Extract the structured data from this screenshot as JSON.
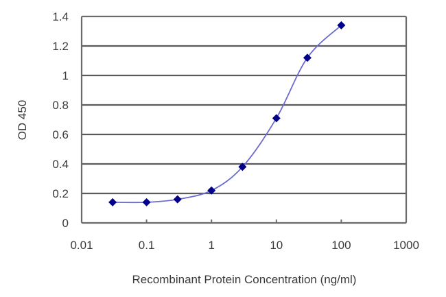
{
  "chart_data": {
    "type": "line",
    "title": "",
    "xlabel": "Recombinant Protein Concentration (ng/ml)",
    "ylabel": "OD 450",
    "xscale": "log",
    "xlim": [
      0.01,
      1000
    ],
    "ylim": [
      0,
      1.4
    ],
    "xticks": [
      "0.01",
      "0.1",
      "1",
      "10",
      "100",
      "1000"
    ],
    "yticks": [
      "0",
      "0.2",
      "0.4",
      "0.6",
      "0.8",
      "1",
      "1.2",
      "1.4"
    ],
    "grid": "horizontal",
    "legend": null,
    "series": [
      {
        "name": "OD 450",
        "x": [
          0.03,
          0.1,
          0.3,
          1,
          3,
          10,
          30,
          100
        ],
        "values": [
          0.14,
          0.14,
          0.16,
          0.22,
          0.38,
          0.71,
          1.12,
          1.34
        ],
        "marker": "diamond",
        "marker_color": "#00008b",
        "line_color": "#6a6ad0"
      }
    ]
  },
  "colors": {
    "grid": "#5a5a5a",
    "frame": "#6a6a6a",
    "text": "#3a3a3a"
  }
}
